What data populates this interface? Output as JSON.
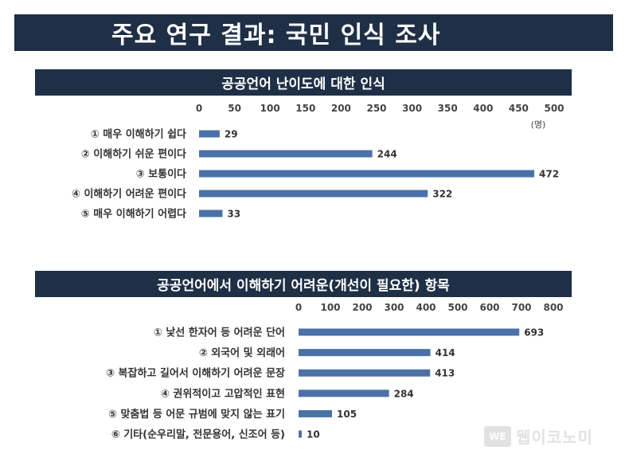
{
  "title": "주요 연구 결과: 국민 인식 조사",
  "watermark": {
    "logo": "WE",
    "text": "웹이코노미"
  },
  "chart_data": [
    {
      "type": "bar",
      "orientation": "horizontal",
      "title": "공공언어 난이도에 대한 인식",
      "unit": "(명)",
      "categories": [
        "① 매우 이해하기 쉽다",
        "② 이해하기 쉬운 편이다",
        "③ 보통이다",
        "④ 이해하기 어려운 편이다",
        "⑤ 매우 이해하기 어렵다"
      ],
      "values": [
        29,
        244,
        472,
        322,
        33
      ],
      "xlim": [
        0,
        500
      ],
      "ticks": [
        0,
        50,
        100,
        150,
        200,
        250,
        300,
        350,
        400,
        450,
        500
      ],
      "bar_color": "#4a72a8",
      "grid": false,
      "legend": "none"
    },
    {
      "type": "bar",
      "orientation": "horizontal",
      "title": "공공언어에서 이해하기 어려운(개선이 필요한) 항목",
      "categories": [
        "① 낯선 한자어 등 어려운 단어",
        "② 외국어 및 외래어",
        "③ 복잡하고 길어서 이해하기 어려운 문장",
        "④ 권위적이고 고압적인 표현",
        "⑤ 맞춤법 등 어문 규범에 맞지 않는 표기",
        "⑥ 기타(순우리말, 전문용어, 신조어 등)"
      ],
      "values": [
        693,
        414,
        413,
        284,
        105,
        10
      ],
      "xlim": [
        0,
        800
      ],
      "ticks": [
        0,
        100,
        200,
        300,
        400,
        500,
        600,
        700,
        800
      ],
      "bar_color": "#4a72a8",
      "grid": false,
      "legend": "none"
    }
  ]
}
